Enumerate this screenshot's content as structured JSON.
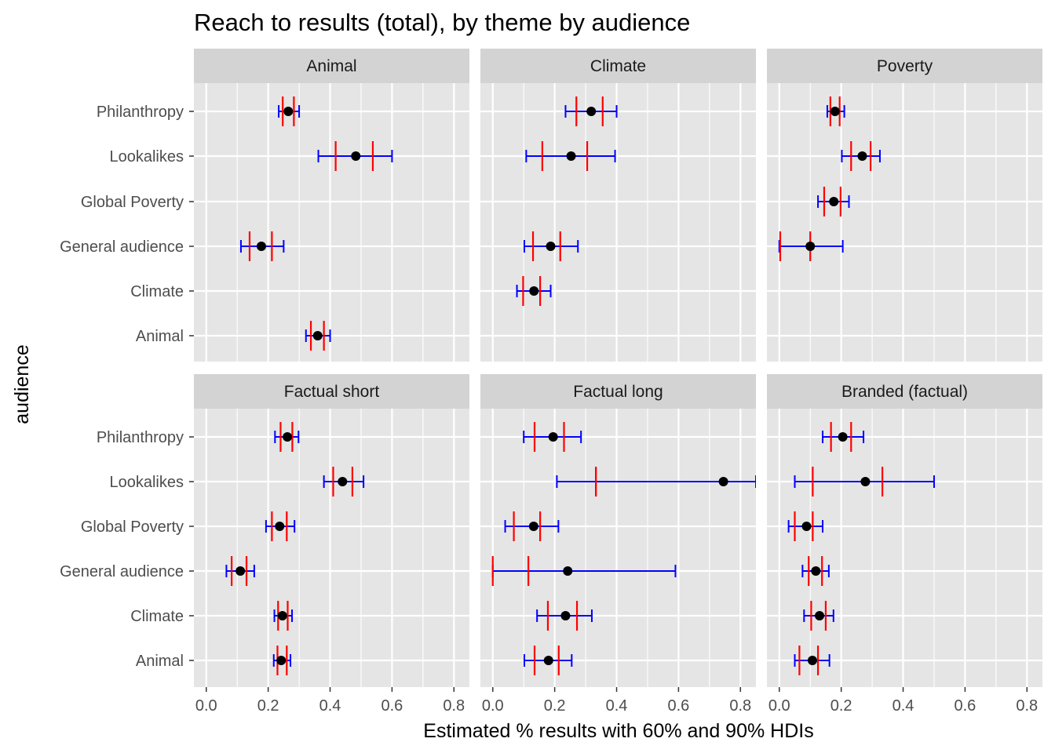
{
  "chart_data": {
    "type": "dot-interval",
    "title": "Reach to results (total), by theme by audience",
    "xlabel": "Estimated % results with 60% and 90% HDIs",
    "ylabel": "audience",
    "xlim": [
      -0.04,
      0.85
    ],
    "x_ticks": [
      "0.0",
      "0.2",
      "0.4",
      "0.6",
      "0.8"
    ],
    "x_tick_values": [
      0,
      0.2,
      0.4,
      0.6,
      0.8
    ],
    "categories": [
      "Philanthropy",
      "Lookalikes",
      "Global Poverty",
      "General audience",
      "Climate",
      "Animal"
    ],
    "grid": true,
    "colors": {
      "point": "#000000",
      "interval_60": "#ff0000",
      "interval_90": "#0000ff",
      "panel_background": "#e5e5e5",
      "strip_background": "#d3d3d3",
      "grid": "#ffffff"
    },
    "legend": "none",
    "panels": [
      {
        "theme": "Animal",
        "rows": [
          {
            "audience": "Philanthropy",
            "point": 0.265,
            "hdi60": [
              0.247,
              0.283
            ],
            "hdi90": [
              0.234,
              0.3
            ]
          },
          {
            "audience": "Lookalikes",
            "point": 0.483,
            "hdi60": [
              0.418,
              0.538
            ],
            "hdi90": [
              0.362,
              0.6
            ]
          },
          {
            "audience": "General audience",
            "point": 0.178,
            "hdi60": [
              0.14,
              0.212
            ],
            "hdi90": [
              0.112,
              0.25
            ]
          },
          {
            "audience": "Animal",
            "point": 0.36,
            "hdi60": [
              0.338,
              0.38
            ],
            "hdi90": [
              0.322,
              0.4
            ]
          }
        ]
      },
      {
        "theme": "Climate",
        "rows": [
          {
            "audience": "Philanthropy",
            "point": 0.318,
            "hdi60": [
              0.27,
              0.355
            ],
            "hdi90": [
              0.235,
              0.4
            ]
          },
          {
            "audience": "Lookalikes",
            "point": 0.253,
            "hdi60": [
              0.16,
              0.305
            ],
            "hdi90": [
              0.108,
              0.395
            ]
          },
          {
            "audience": "General audience",
            "point": 0.187,
            "hdi60": [
              0.13,
              0.218
            ],
            "hdi90": [
              0.102,
              0.275
            ]
          },
          {
            "audience": "Climate",
            "point": 0.133,
            "hdi60": [
              0.098,
              0.153
            ],
            "hdi90": [
              0.078,
              0.187
            ]
          }
        ]
      },
      {
        "theme": "Poverty",
        "rows": [
          {
            "audience": "Philanthropy",
            "point": 0.18,
            "hdi60": [
              0.165,
              0.195
            ],
            "hdi90": [
              0.155,
              0.21
            ]
          },
          {
            "audience": "Lookalikes",
            "point": 0.268,
            "hdi60": [
              0.232,
              0.295
            ],
            "hdi90": [
              0.202,
              0.325
            ]
          },
          {
            "audience": "Global Poverty",
            "point": 0.176,
            "hdi60": [
              0.145,
              0.198
            ],
            "hdi90": [
              0.125,
              0.225
            ]
          },
          {
            "audience": "General audience",
            "point": 0.1,
            "hdi60": [
              0.003,
              0.1
            ],
            "hdi90": [
              0.0,
              0.205
            ]
          }
        ]
      },
      {
        "theme": "Factual short",
        "rows": [
          {
            "audience": "Philanthropy",
            "point": 0.262,
            "hdi60": [
              0.24,
              0.278
            ],
            "hdi90": [
              0.222,
              0.298
            ]
          },
          {
            "audience": "Lookalikes",
            "point": 0.44,
            "hdi60": [
              0.41,
              0.472
            ],
            "hdi90": [
              0.38,
              0.508
            ]
          },
          {
            "audience": "Global Poverty",
            "point": 0.237,
            "hdi60": [
              0.212,
              0.26
            ],
            "hdi90": [
              0.193,
              0.285
            ]
          },
          {
            "audience": "General audience",
            "point": 0.11,
            "hdi60": [
              0.082,
              0.13
            ],
            "hdi90": [
              0.065,
              0.155
            ]
          },
          {
            "audience": "Climate",
            "point": 0.246,
            "hdi60": [
              0.232,
              0.263
            ],
            "hdi90": [
              0.22,
              0.277
            ]
          },
          {
            "audience": "Animal",
            "point": 0.242,
            "hdi60": [
              0.23,
              0.26
            ],
            "hdi90": [
              0.218,
              0.272
            ]
          }
        ]
      },
      {
        "theme": "Factual long",
        "rows": [
          {
            "audience": "Philanthropy",
            "point": 0.195,
            "hdi60": [
              0.135,
              0.23
            ],
            "hdi90": [
              0.1,
              0.285
            ]
          },
          {
            "audience": "Lookalikes",
            "point": 0.745,
            "hdi60": [
              0.333,
              0.333
            ],
            "hdi90": [
              0.207,
              0.85
            ]
          },
          {
            "audience": "Global Poverty",
            "point": 0.132,
            "hdi60": [
              0.068,
              0.153
            ],
            "hdi90": [
              0.04,
              0.212
            ]
          },
          {
            "audience": "General audience",
            "point": 0.242,
            "hdi60": [
              0.0,
              0.115
            ],
            "hdi90": [
              0.0,
              0.59
            ]
          },
          {
            "audience": "Climate",
            "point": 0.235,
            "hdi60": [
              0.178,
              0.272
            ],
            "hdi90": [
              0.143,
              0.32
            ]
          },
          {
            "audience": "Animal",
            "point": 0.18,
            "hdi60": [
              0.135,
              0.213
            ],
            "hdi90": [
              0.102,
              0.255
            ]
          }
        ]
      },
      {
        "theme": "Branded (factual)",
        "rows": [
          {
            "audience": "Philanthropy",
            "point": 0.205,
            "hdi60": [
              0.167,
              0.232
            ],
            "hdi90": [
              0.14,
              0.272
            ]
          },
          {
            "audience": "Lookalikes",
            "point": 0.278,
            "hdi60": [
              0.108,
              0.333
            ],
            "hdi90": [
              0.05,
              0.5
            ]
          },
          {
            "audience": "Global Poverty",
            "point": 0.088,
            "hdi60": [
              0.05,
              0.108
            ],
            "hdi90": [
              0.03,
              0.14
            ]
          },
          {
            "audience": "General audience",
            "point": 0.118,
            "hdi60": [
              0.095,
              0.138
            ],
            "hdi90": [
              0.075,
              0.16
            ]
          },
          {
            "audience": "Climate",
            "point": 0.13,
            "hdi60": [
              0.103,
              0.15
            ],
            "hdi90": [
              0.08,
              0.175
            ]
          },
          {
            "audience": "Animal",
            "point": 0.107,
            "hdi60": [
              0.065,
              0.125
            ],
            "hdi90": [
              0.05,
              0.162
            ]
          }
        ]
      }
    ]
  }
}
